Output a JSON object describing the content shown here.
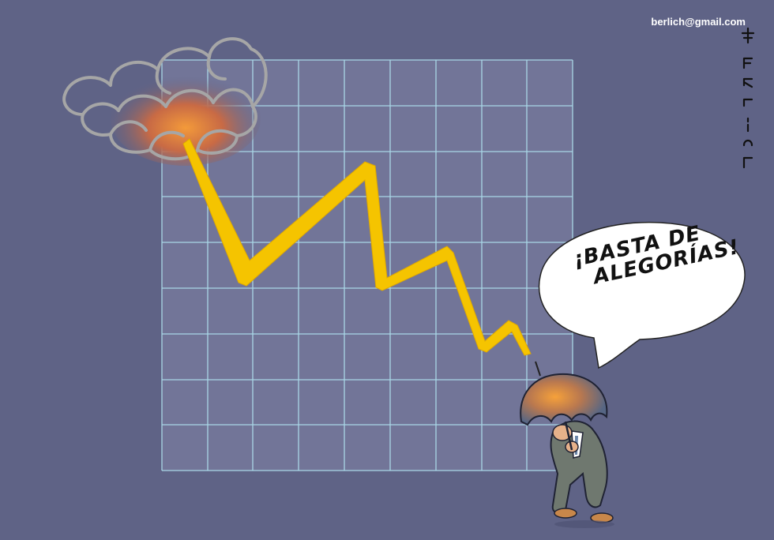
{
  "cartoon": {
    "email": "berlich@gmail.com",
    "speech_line1": "¡BASTA DE",
    "speech_line2": "ALEGORÍAS!",
    "signature": "ERLICH"
  },
  "colors": {
    "background": "#5f6386",
    "grid_fill": "#727598",
    "grid_lines": "#a9d7e6",
    "lightning": "#f5c400",
    "cloud_glow": "#e8843a",
    "umbrella": "#4f6386",
    "suit": "#6f786f",
    "bubble": "#ffffff"
  }
}
